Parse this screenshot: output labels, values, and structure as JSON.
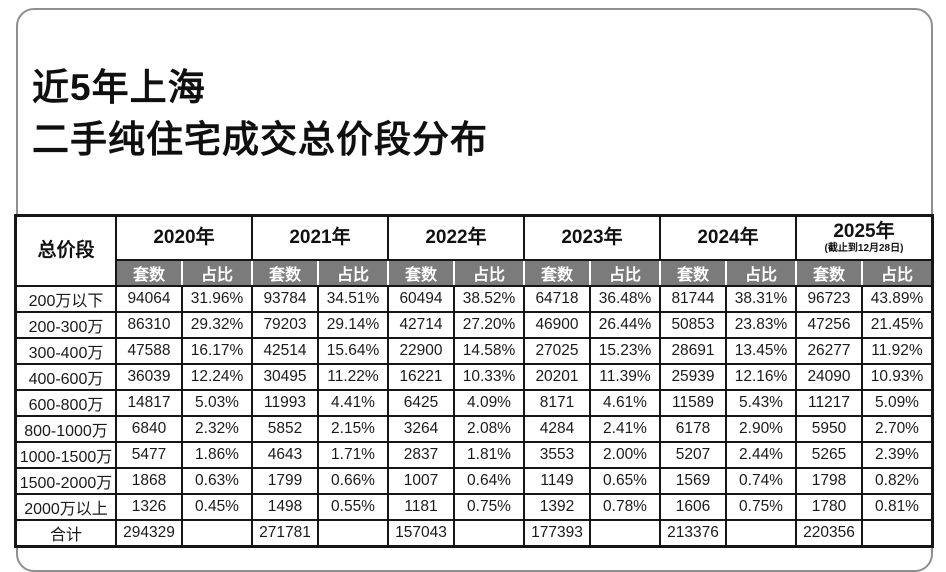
{
  "header": {
    "title_line1": "近5年上海",
    "title_line2": "二手纯住宅成交总价段分布"
  },
  "colors": {
    "accent_yellow": "#F1C24E",
    "subheader_gray": "#7B7B7B",
    "border_black": "#161616",
    "card_border": "#8F8F8F",
    "background": "#FFFFFF"
  },
  "chart_data": {
    "type": "table",
    "title": "近5年上海二手纯住宅成交总价段分布",
    "corner_header": "总价段",
    "sub_headers": [
      "套数",
      "占比"
    ],
    "years": [
      {
        "label": "2020年",
        "note": ""
      },
      {
        "label": "2021年",
        "note": ""
      },
      {
        "label": "2022年",
        "note": ""
      },
      {
        "label": "2023年",
        "note": ""
      },
      {
        "label": "2024年",
        "note": ""
      },
      {
        "label": "2025年",
        "note": "(截止到12月28日)"
      }
    ],
    "rows": [
      {
        "range": "200万以下",
        "cells": [
          "94064",
          "31.96%",
          "93784",
          "34.51%",
          "60494",
          "38.52%",
          "64718",
          "36.48%",
          "81744",
          "38.31%",
          "96723",
          "43.89%"
        ]
      },
      {
        "range": "200-300万",
        "cells": [
          "86310",
          "29.32%",
          "79203",
          "29.14%",
          "42714",
          "27.20%",
          "46900",
          "26.44%",
          "50853",
          "23.83%",
          "47256",
          "21.45%"
        ]
      },
      {
        "range": "300-400万",
        "cells": [
          "47588",
          "16.17%",
          "42514",
          "15.64%",
          "22900",
          "14.58%",
          "27025",
          "15.23%",
          "28691",
          "13.45%",
          "26277",
          "11.92%"
        ]
      },
      {
        "range": "400-600万",
        "cells": [
          "36039",
          "12.24%",
          "30495",
          "11.22%",
          "16221",
          "10.33%",
          "20201",
          "11.39%",
          "25939",
          "12.16%",
          "24090",
          "10.93%"
        ]
      },
      {
        "range": "600-800万",
        "cells": [
          "14817",
          "5.03%",
          "11993",
          "4.41%",
          "6425",
          "4.09%",
          "8171",
          "4.61%",
          "11589",
          "5.43%",
          "11217",
          "5.09%"
        ]
      },
      {
        "range": "800-1000万",
        "cells": [
          "6840",
          "2.32%",
          "5852",
          "2.15%",
          "3264",
          "2.08%",
          "4284",
          "2.41%",
          "6178",
          "2.90%",
          "5950",
          "2.70%"
        ]
      },
      {
        "range": "1000-1500万",
        "cells": [
          "5477",
          "1.86%",
          "4643",
          "1.71%",
          "2837",
          "1.81%",
          "3553",
          "2.00%",
          "5207",
          "2.44%",
          "5265",
          "2.39%"
        ]
      },
      {
        "range": "1500-2000万",
        "cells": [
          "1868",
          "0.63%",
          "1799",
          "0.66%",
          "1007",
          "0.64%",
          "1149",
          "0.65%",
          "1569",
          "0.74%",
          "1798",
          "0.82%"
        ]
      },
      {
        "range": "2000万以上",
        "cells": [
          "1326",
          "0.45%",
          "1498",
          "0.55%",
          "1181",
          "0.75%",
          "1392",
          "0.78%",
          "1606",
          "0.75%",
          "1780",
          "0.81%"
        ]
      }
    ],
    "total": {
      "label": "合计",
      "cells": [
        "294329",
        "",
        "271781",
        "",
        "157043",
        "",
        "177393",
        "",
        "213376",
        "",
        "220356",
        ""
      ]
    }
  }
}
